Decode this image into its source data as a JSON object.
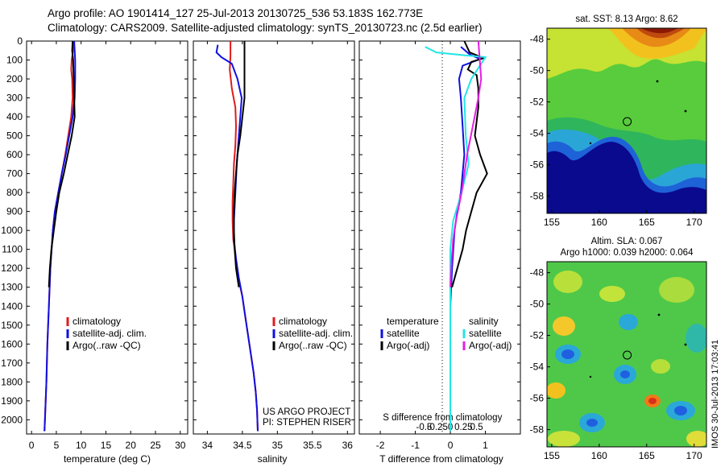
{
  "header": {
    "title_line1": "Argo profile: AO 1901414_127 25-Jul-2013 20130725_536 53.183S 162.773E",
    "title_line2": "Climatology: CARS2009. Satellite-adjusted climatology: synTS_20130723.nc (2.5d earlier)"
  },
  "credits": {
    "line1": "US ARGO PROJECT",
    "line2": "PI: STEPHEN RISER",
    "side_stamp": "IMOS 30-Jul-2013 17:03:41"
  },
  "colors": {
    "climatology": "#e01b1b",
    "satellite": "#1010e0",
    "argo": "#000000",
    "diff_sal_satellite": "#22e6e6",
    "diff_sal_argo": "#e61ee6"
  },
  "chart_data": [
    {
      "id": "temperature",
      "type": "line",
      "xlabel": "temperature (deg C)",
      "ylabel": "",
      "xlim": [
        -1,
        31.5
      ],
      "xticks": [
        0,
        5,
        10,
        15,
        20,
        25,
        30
      ],
      "ylim": [
        2075,
        0
      ],
      "yticks": [
        0,
        100,
        200,
        300,
        400,
        500,
        600,
        700,
        800,
        900,
        1000,
        1100,
        1200,
        1300,
        1400,
        1500,
        1600,
        1700,
        1800,
        1900,
        2000
      ],
      "series": [
        {
          "name": "climatology",
          "points": [
            [
              8.5,
              0
            ],
            [
              8.4,
              50
            ],
            [
              8.1,
              100
            ],
            [
              8.0,
              150
            ],
            [
              8.2,
              200
            ],
            [
              8.3,
              300
            ],
            [
              8.0,
              400
            ],
            [
              7.4,
              500
            ],
            [
              6.8,
              600
            ],
            [
              6.1,
              700
            ],
            [
              5.4,
              800
            ],
            [
              4.7,
              900
            ],
            [
              4.3,
              1000
            ],
            [
              3.8,
              1200
            ],
            [
              3.5,
              1400
            ],
            [
              3.2,
              1600
            ],
            [
              3.0,
              1800
            ],
            [
              2.7,
              2000
            ],
            [
              2.6,
              2060
            ]
          ]
        },
        {
          "name": "satellite-adj. clim.",
          "points": [
            [
              8.6,
              0
            ],
            [
              8.7,
              50
            ],
            [
              8.8,
              100
            ],
            [
              8.8,
              200
            ],
            [
              8.7,
              300
            ],
            [
              8.3,
              400
            ],
            [
              7.6,
              500
            ],
            [
              6.9,
              600
            ],
            [
              6.1,
              700
            ],
            [
              5.4,
              800
            ],
            [
              4.7,
              900
            ],
            [
              4.3,
              1000
            ],
            [
              3.8,
              1200
            ],
            [
              3.5,
              1400
            ],
            [
              3.2,
              1600
            ],
            [
              3.0,
              1800
            ],
            [
              2.7,
              2000
            ],
            [
              2.6,
              2060
            ]
          ]
        },
        {
          "name": "Argo(..raw -QC)",
          "points": [
            [
              8.3,
              0
            ],
            [
              8.2,
              50
            ],
            [
              8.4,
              100
            ],
            [
              8.5,
              200
            ],
            [
              8.6,
              300
            ],
            [
              8.7,
              400
            ],
            [
              8.1,
              500
            ],
            [
              7.3,
              600
            ],
            [
              6.5,
              700
            ],
            [
              5.6,
              800
            ],
            [
              5.0,
              900
            ],
            [
              4.5,
              1000
            ],
            [
              4.0,
              1100
            ],
            [
              3.7,
              1200
            ],
            [
              3.5,
              1300
            ]
          ]
        }
      ],
      "legend": {
        "position": "bottom-center",
        "entries": [
          "climatology",
          "satellite-adj. clim.",
          "Argo(..raw -QC)"
        ]
      }
    },
    {
      "id": "salinity",
      "type": "line",
      "xlabel": "salinity",
      "ylabel": "",
      "xlim": [
        33.8,
        36.1
      ],
      "xticks": [
        34,
        34.5,
        35,
        35.5,
        36
      ],
      "xtick_labels": [
        "34",
        "34.5",
        "35",
        "35.5",
        "36"
      ],
      "ylim": [
        2075,
        0
      ],
      "series": [
        {
          "name": "climatology",
          "points": [
            [
              34.33,
              0
            ],
            [
              34.33,
              80
            ],
            [
              34.32,
              150
            ],
            [
              34.35,
              250
            ],
            [
              34.4,
              350
            ],
            [
              34.41,
              450
            ],
            [
              34.4,
              550
            ],
            [
              34.38,
              650
            ],
            [
              34.37,
              750
            ],
            [
              34.36,
              850
            ],
            [
              34.36,
              950
            ],
            [
              34.37,
              1050
            ],
            [
              34.41,
              1150
            ],
            [
              34.44,
              1250
            ],
            [
              34.5,
              1350
            ],
            [
              34.54,
              1450
            ],
            [
              34.58,
              1550
            ],
            [
              34.62,
              1650
            ],
            [
              34.66,
              1750
            ],
            [
              34.69,
              1850
            ],
            [
              34.71,
              1950
            ],
            [
              34.72,
              2060
            ]
          ]
        },
        {
          "name": "satellite-adj. clim.",
          "points": [
            [
              34.15,
              20
            ],
            [
              34.13,
              60
            ],
            [
              34.2,
              85
            ],
            [
              34.35,
              120
            ],
            [
              34.43,
              200
            ],
            [
              34.49,
              300
            ],
            [
              34.47,
              400
            ],
            [
              34.45,
              500
            ],
            [
              34.42,
              650
            ],
            [
              34.4,
              800
            ],
            [
              34.38,
              950
            ],
            [
              34.38,
              1050
            ],
            [
              34.41,
              1150
            ],
            [
              34.45,
              1250
            ],
            [
              34.5,
              1350
            ],
            [
              34.54,
              1450
            ],
            [
              34.58,
              1550
            ],
            [
              34.62,
              1650
            ],
            [
              34.66,
              1750
            ],
            [
              34.69,
              1850
            ],
            [
              34.71,
              1950
            ],
            [
              34.72,
              2060
            ]
          ]
        },
        {
          "name": "Argo(..raw -QC)",
          "points": [
            [
              34.53,
              0
            ],
            [
              34.53,
              100
            ],
            [
              34.53,
              200
            ],
            [
              34.53,
              300
            ],
            [
              34.5,
              400
            ],
            [
              34.47,
              500
            ],
            [
              34.43,
              600
            ],
            [
              34.41,
              700
            ],
            [
              34.39,
              800
            ],
            [
              34.38,
              900
            ],
            [
              34.38,
              1000
            ],
            [
              34.39,
              1100
            ],
            [
              34.41,
              1200
            ],
            [
              34.45,
              1300
            ]
          ]
        }
      ],
      "legend": {
        "position": "bottom-right",
        "entries": [
          "climatology",
          "satellite-adj. clim.",
          "Argo(..raw -QC)"
        ]
      }
    },
    {
      "id": "difference",
      "type": "line",
      "xlabel": "T difference from climatology",
      "xlabel_top": "S difference from climatology",
      "xlim": [
        -2.6,
        2.0
      ],
      "xticks": [
        -2,
        -1,
        0,
        1
      ],
      "top_ticks": [
        -0.5,
        -0.25,
        0,
        0.25,
        0.5
      ],
      "top_tick_labels": [
        "-0.5",
        "-0.25",
        "0",
        "0.25",
        "0.5"
      ],
      "ylim": [
        2075,
        0
      ],
      "series": [
        {
          "name": "temperature satellite",
          "points": [
            [
              0.3,
              30
            ],
            [
              0.55,
              70
            ],
            [
              0.85,
              95
            ],
            [
              0.35,
              130
            ],
            [
              0.25,
              200
            ],
            [
              0.3,
              300
            ],
            [
              0.35,
              450
            ],
            [
              0.4,
              600
            ],
            [
              0.3,
              800
            ],
            [
              0.2,
              900
            ],
            [
              0.12,
              1000
            ],
            [
              0.05,
              1200
            ],
            [
              0.0,
              1400
            ],
            [
              0.0,
              1600
            ],
            [
              0.0,
              1800
            ],
            [
              0.0,
              2060
            ]
          ]
        },
        {
          "name": "temperature Argo(-adj)",
          "points": [
            [
              0.4,
              0
            ],
            [
              0.55,
              60
            ],
            [
              0.95,
              90
            ],
            [
              0.6,
              110
            ],
            [
              0.5,
              150
            ],
            [
              0.75,
              180
            ],
            [
              0.8,
              250
            ],
            [
              0.8,
              350
            ],
            [
              0.7,
              500
            ],
            [
              0.85,
              600
            ],
            [
              1.05,
              700
            ],
            [
              0.75,
              800
            ],
            [
              0.6,
              900
            ],
            [
              0.45,
              1000
            ],
            [
              0.35,
              1100
            ],
            [
              0.2,
              1200
            ],
            [
              0.05,
              1300
            ]
          ]
        },
        {
          "name": "salinity satellite",
          "points": [
            [
              -0.18,
              30
            ],
            [
              -0.1,
              60
            ],
            [
              0.1,
              75
            ],
            [
              0.25,
              85
            ],
            [
              0.22,
              120
            ],
            [
              0.15,
              200
            ],
            [
              0.1,
              300
            ],
            [
              0.11,
              500
            ],
            [
              0.13,
              650
            ],
            [
              0.08,
              800
            ],
            [
              0.02,
              950
            ],
            [
              0.0,
              1100
            ],
            [
              0.0,
              1300
            ],
            [
              0.0,
              1600
            ],
            [
              0.0,
              2060
            ]
          ]
        },
        {
          "name": "salinity Argo(-adj)",
          "points": [
            [
              0.2,
              0
            ],
            [
              0.21,
              100
            ],
            [
              0.22,
              200
            ],
            [
              0.2,
              300
            ],
            [
              0.16,
              450
            ],
            [
              0.12,
              600
            ],
            [
              0.08,
              800
            ],
            [
              0.04,
              950
            ],
            [
              0.02,
              1050
            ],
            [
              0.01,
              1150
            ],
            [
              0.0,
              1300
            ]
          ]
        }
      ],
      "legend_temperature": {
        "title": "temperature",
        "entries": [
          "satellite",
          "Argo(-adj)"
        ]
      },
      "legend_salinity": {
        "title": "salinity",
        "entries": [
          "satellite",
          "Argo(-adj)"
        ]
      }
    },
    {
      "id": "sst_map",
      "type": "heatmap",
      "title": "sat. SST: 8.13 Argo: 8.62",
      "xticks": [
        155,
        160,
        165,
        170
      ],
      "yticks": [
        -48,
        -50,
        -52,
        -54,
        -56,
        -58
      ],
      "xlim": [
        154.5,
        171.3
      ],
      "ylim": [
        -59.1,
        -47.3
      ],
      "profile_location": [
        162.773,
        -53.183
      ]
    },
    {
      "id": "sla_map",
      "type": "heatmap",
      "title_line1": "Altim. SLA: 0.067",
      "title_line2": "Argo h1000: 0.039 h2000: 0.064",
      "xticks": [
        155,
        160,
        165,
        170
      ],
      "yticks": [
        -48,
        -50,
        -52,
        -54,
        -56,
        -58
      ],
      "xlim": [
        154.5,
        171.3
      ],
      "ylim": [
        -59.1,
        -47.3
      ],
      "profile_location": [
        162.773,
        -53.183
      ]
    }
  ]
}
